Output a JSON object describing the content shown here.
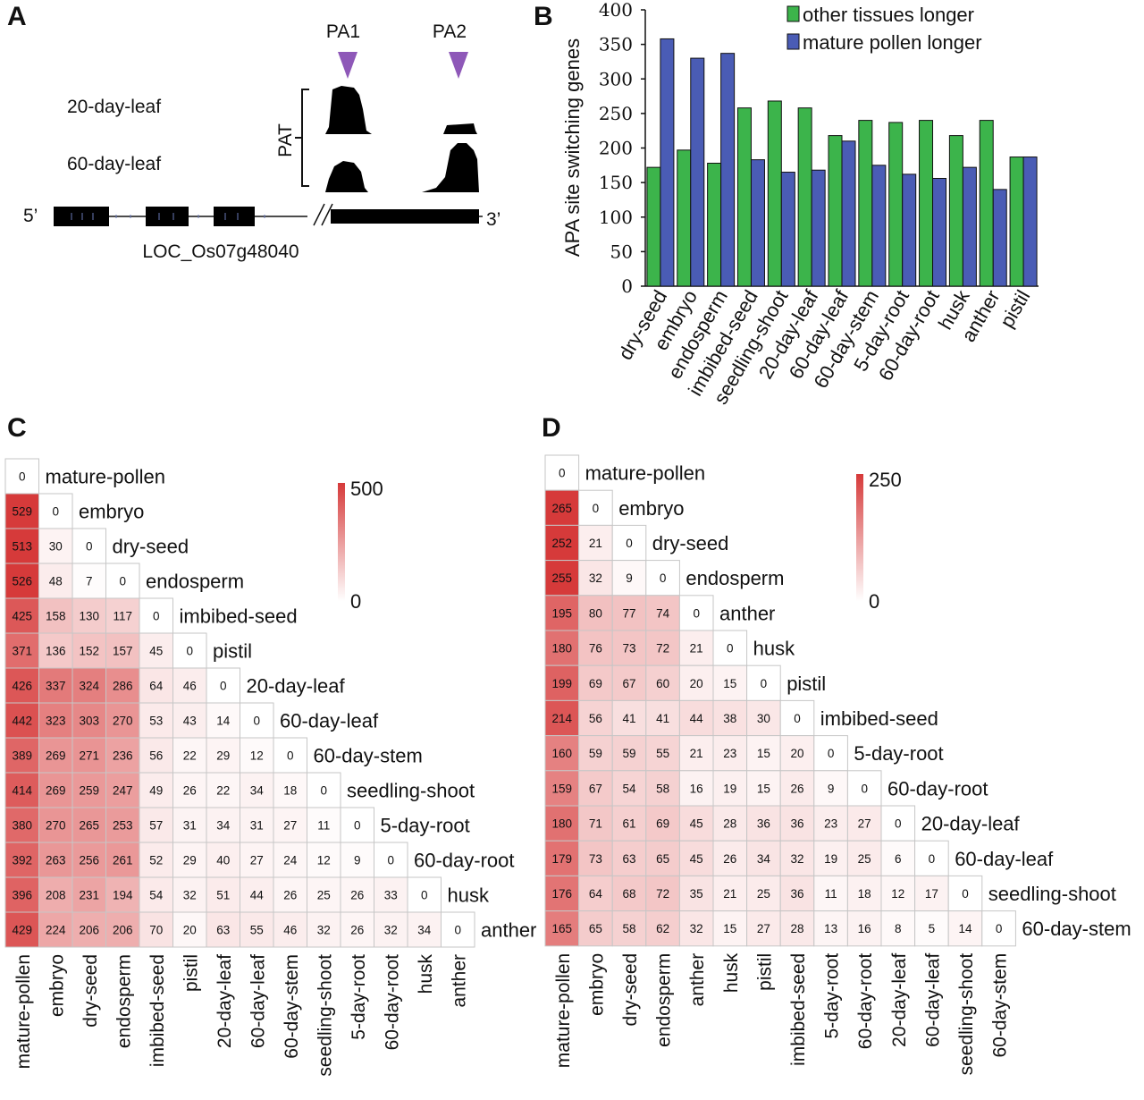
{
  "panels": {
    "a": {
      "label": "A",
      "pa1": "PA1",
      "pa2": "PA2",
      "row1": "20-day-leaf",
      "row2": "60-day-leaf",
      "pat": "PAT",
      "five": "5’",
      "three": "3’",
      "gene": "LOC_Os07g48040"
    },
    "b": {
      "label": "B"
    },
    "c": {
      "label": "C"
    },
    "d": {
      "label": "D"
    }
  },
  "colors": {
    "green": "#3cb44b",
    "blue": "#4a5cb5",
    "heat": "#d63a3a",
    "purple": "#8e58b8"
  },
  "chart_data": [
    {
      "type": "bar",
      "ylabel": "APA site switching genes",
      "ylim": [
        0,
        400
      ],
      "yticks": [
        0,
        50,
        100,
        150,
        200,
        250,
        300,
        350,
        400
      ],
      "legend_position": "top",
      "categories": [
        "dry-seed",
        "embryo",
        "endosperm",
        "imbibed-seed",
        "seedling-shoot",
        "20-day-leaf",
        "60-day-leaf",
        "60-day-stem",
        "5-day-root",
        "60-day-root",
        "husk",
        "anther",
        "pistil"
      ],
      "series": [
        {
          "name": "other tissues longer",
          "color": "#3cb44b",
          "values": [
            172,
            197,
            178,
            258,
            268,
            258,
            218,
            240,
            237,
            240,
            218,
            240,
            187
          ]
        },
        {
          "name": "mature pollen longer",
          "color": "#4a5cb5",
          "values": [
            358,
            330,
            337,
            183,
            165,
            168,
            210,
            175,
            162,
            156,
            172,
            140,
            187
          ]
        }
      ]
    },
    {
      "type": "heatmap",
      "scale_max": 500,
      "scale_max_label": "500",
      "scale_min_label": "0",
      "labels": [
        "mature-pollen",
        "embryo",
        "dry-seed",
        "endosperm",
        "imbibed-seed",
        "pistil",
        "20-day-leaf",
        "60-day-leaf",
        "60-day-stem",
        "seedling-shoot",
        "5-day-root",
        "60-day-root",
        "husk",
        "anther"
      ],
      "rows": [
        [
          0
        ],
        [
          529,
          0
        ],
        [
          513,
          30,
          0
        ],
        [
          526,
          48,
          7,
          0
        ],
        [
          425,
          158,
          130,
          117,
          0
        ],
        [
          371,
          136,
          152,
          157,
          45,
          0
        ],
        [
          426,
          337,
          324,
          286,
          64,
          46,
          0
        ],
        [
          442,
          323,
          303,
          270,
          53,
          43,
          14,
          0
        ],
        [
          389,
          269,
          271,
          236,
          56,
          22,
          29,
          12,
          0
        ],
        [
          414,
          269,
          259,
          247,
          49,
          26,
          22,
          34,
          18,
          0
        ],
        [
          380,
          270,
          265,
          253,
          57,
          31,
          34,
          31,
          27,
          11,
          0
        ],
        [
          392,
          263,
          256,
          261,
          52,
          29,
          40,
          27,
          24,
          12,
          9,
          0
        ],
        [
          396,
          208,
          231,
          194,
          54,
          32,
          51,
          44,
          26,
          25,
          26,
          33,
          0
        ],
        [
          429,
          224,
          206,
          206,
          70,
          20,
          63,
          55,
          46,
          32,
          26,
          32,
          34,
          0
        ]
      ]
    },
    {
      "type": "heatmap",
      "scale_max": 250,
      "scale_max_label": "250",
      "scale_min_label": "0",
      "labels": [
        "mature-pollen",
        "embryo",
        "dry-seed",
        "endosperm",
        "anther",
        "husk",
        "pistil",
        "imbibed-seed",
        "5-day-root",
        "60-day-root",
        "20-day-leaf",
        "60-day-leaf",
        "seedling-shoot",
        "60-day-stem"
      ],
      "rows": [
        [
          0
        ],
        [
          265,
          0
        ],
        [
          252,
          21,
          0
        ],
        [
          255,
          32,
          9,
          0
        ],
        [
          195,
          80,
          77,
          74,
          0
        ],
        [
          180,
          76,
          73,
          72,
          21,
          0
        ],
        [
          199,
          69,
          67,
          60,
          20,
          15,
          0
        ],
        [
          214,
          56,
          41,
          41,
          44,
          38,
          30,
          0
        ],
        [
          160,
          59,
          59,
          55,
          21,
          23,
          15,
          20,
          0
        ],
        [
          159,
          67,
          54,
          58,
          16,
          19,
          15,
          26,
          9,
          0
        ],
        [
          180,
          71,
          61,
          69,
          45,
          28,
          36,
          36,
          23,
          27,
          0
        ],
        [
          179,
          73,
          63,
          65,
          45,
          26,
          34,
          32,
          19,
          25,
          6,
          0
        ],
        [
          176,
          64,
          68,
          72,
          35,
          21,
          25,
          36,
          11,
          18,
          12,
          17,
          0
        ],
        [
          165,
          65,
          58,
          62,
          32,
          15,
          27,
          28,
          13,
          16,
          8,
          5,
          14,
          0
        ]
      ]
    }
  ]
}
